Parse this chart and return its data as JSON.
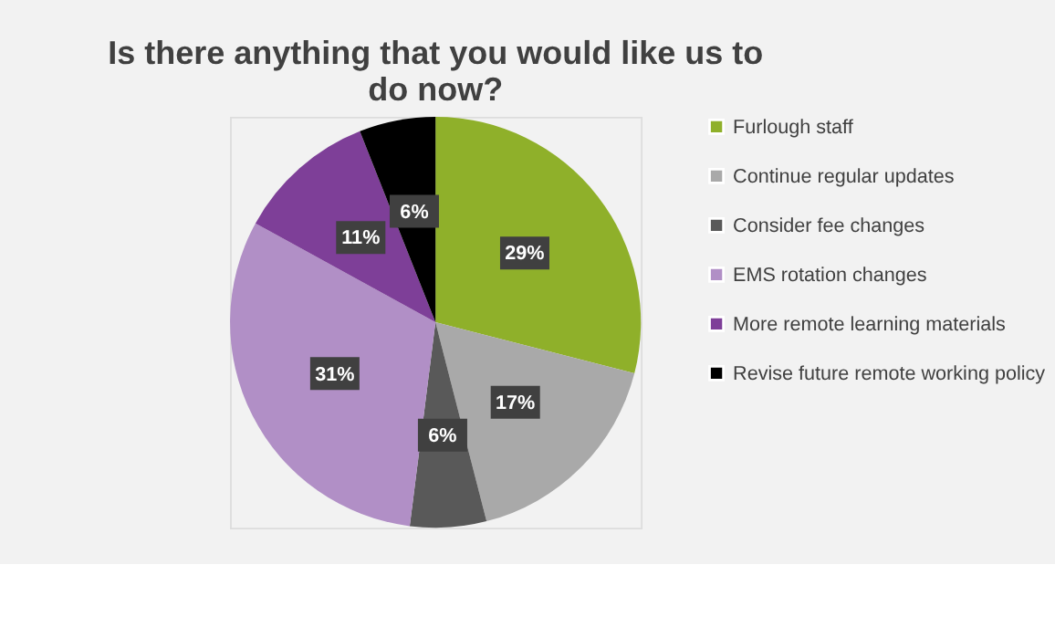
{
  "chart_data": {
    "type": "pie",
    "title": "Is there anything that you would like us to do now?",
    "categories": [
      "Furlough staff",
      "Continue regular updates",
      "Consider fee changes",
      "EMS rotation changes",
      "More remote learning materials",
      "Revise future remote working policy"
    ],
    "values": [
      29,
      17,
      6,
      31,
      11,
      6
    ],
    "colors": [
      "#8fb02a",
      "#a9a9a9",
      "#595959",
      "#b18fc6",
      "#7e3f98",
      "#000000"
    ],
    "value_labels": [
      "29%",
      "17%",
      "6%",
      "31%",
      "11%",
      "6%"
    ],
    "legend": "right"
  }
}
